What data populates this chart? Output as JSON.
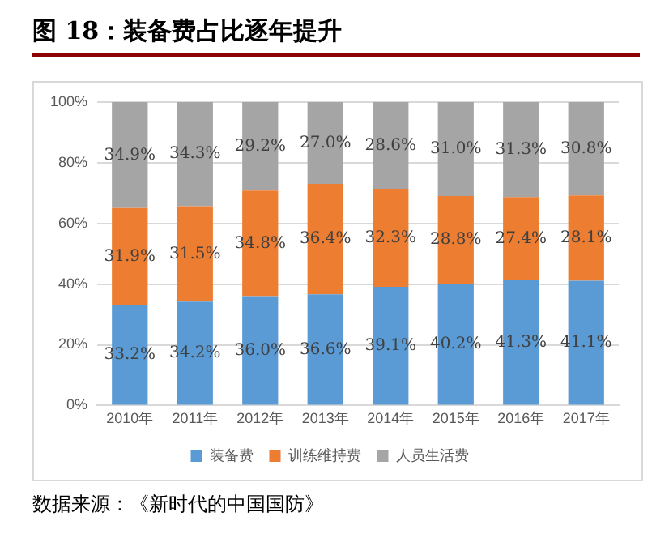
{
  "chart_data": {
    "type": "bar",
    "title": "图 18：装备费占比逐年提升",
    "stacked": true,
    "categories": [
      "2010年",
      "2011年",
      "2012年",
      "2013年",
      "2014年",
      "2015年",
      "2016年",
      "2017年"
    ],
    "series": [
      {
        "name": "装备费",
        "color": "#5b9bd5",
        "values": [
          33.2,
          34.2,
          36.0,
          36.6,
          39.1,
          40.2,
          41.3,
          41.1
        ],
        "value_labels": [
          "33.2%",
          "34.2%",
          "36.0%",
          "36.6%",
          "39.1%",
          "40.2%",
          "41.3%",
          "41.1%"
        ]
      },
      {
        "name": "训练维持费",
        "color": "#ed7d31",
        "values": [
          31.9,
          31.5,
          34.8,
          36.4,
          32.3,
          28.8,
          27.4,
          28.1
        ],
        "value_labels": [
          "31.9%",
          "31.5%",
          "34.8%",
          "36.4%",
          "32.3%",
          "28.8%",
          "27.4%",
          "28.1%"
        ]
      },
      {
        "name": "人员生活费",
        "color": "#a5a5a5",
        "values": [
          34.9,
          34.3,
          29.2,
          27.0,
          28.6,
          31.0,
          31.3,
          30.8
        ],
        "value_labels": [
          "34.9%",
          "34.3%",
          "29.2%",
          "27.0%",
          "28.6%",
          "31.0%",
          "31.3%",
          "30.8%"
        ]
      }
    ],
    "ylim": [
      0,
      100
    ],
    "yticks": [
      {
        "value": 0,
        "label": "0%"
      },
      {
        "value": 20,
        "label": "20%"
      },
      {
        "value": 40,
        "label": "40%"
      },
      {
        "value": 60,
        "label": "60%"
      },
      {
        "value": 80,
        "label": "80%"
      },
      {
        "value": 100,
        "label": "100%"
      }
    ],
    "grid": "y",
    "legend": "bottom",
    "annotations": [
      "数据来源：《新时代的中国国防》"
    ]
  }
}
